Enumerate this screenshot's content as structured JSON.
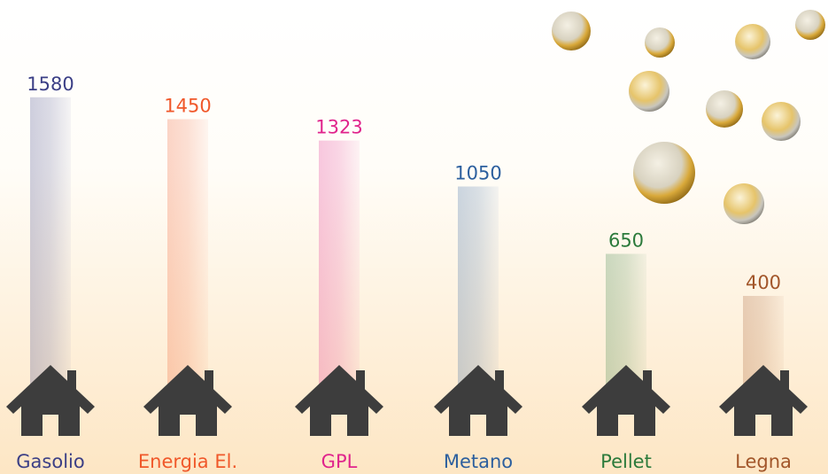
{
  "chart_data": {
    "type": "bar",
    "categories": [
      "Gasolio",
      "Energia El.",
      "GPL",
      "Metano",
      "Pellet",
      "Legna"
    ],
    "values": [
      1580,
      1450,
      1323,
      1050,
      650,
      400
    ],
    "colors": [
      "#3b3f86",
      "#f0582a",
      "#e0248c",
      "#2c5f9e",
      "#2b7a3b",
      "#a2562a"
    ]
  }
}
